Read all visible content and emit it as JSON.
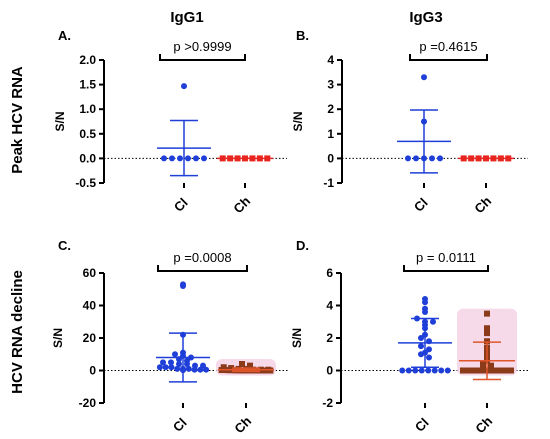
{
  "column_titles": [
    "IgG1",
    "IgG3"
  ],
  "row_titles": [
    "Peak HCV RNA",
    "HCV RNA decline"
  ],
  "colors": {
    "cl": "#1f3fd8",
    "ch_top": "#e8251f",
    "ch_bottom": "#8b3a1a",
    "ch_bottom_bg": "#f5d3e6",
    "axis": "#000000"
  },
  "chart_data": [
    {
      "type": "scatter",
      "panel": "A.",
      "ylabel": "S/N",
      "ylim": [
        -0.5,
        2.0
      ],
      "yticks": [
        -0.5,
        0.0,
        0.5,
        1.0,
        1.5,
        2.0
      ],
      "yticklabels": [
        "-0.5",
        "0.0",
        "0.5",
        "1.0",
        "1.5",
        "2.0"
      ],
      "categories": [
        "Cl",
        "Ch"
      ],
      "p_text": "p  >0.9999",
      "reference_line": 0,
      "series": [
        {
          "category": "Cl",
          "values": [
            1.47,
            0,
            0,
            0,
            0,
            0,
            0
          ],
          "mean": 0.21,
          "sd": 0.56
        },
        {
          "category": "Ch",
          "values": [
            0,
            0,
            0,
            0,
            0,
            0,
            0
          ],
          "mean": 0,
          "sd": 0
        }
      ]
    },
    {
      "type": "scatter",
      "panel": "B.",
      "ylabel": "S/N",
      "ylim": [
        -1,
        4
      ],
      "yticks": [
        -1,
        0,
        1,
        2,
        3,
        4
      ],
      "yticklabels": [
        "-1",
        "0",
        "1",
        "2",
        "3",
        "4"
      ],
      "categories": [
        "Cl",
        "Ch"
      ],
      "p_text": "p =0.4615",
      "reference_line": 0,
      "series": [
        {
          "category": "Cl",
          "values": [
            3.3,
            1.5,
            0,
            0,
            0,
            0,
            0
          ],
          "mean": 0.69,
          "sd": 1.28
        },
        {
          "category": "Ch",
          "values": [
            0,
            0,
            0,
            0,
            0,
            0,
            0
          ],
          "mean": 0,
          "sd": 0
        }
      ]
    },
    {
      "type": "scatter",
      "panel": "C.",
      "ylabel": "S/N",
      "ylim": [
        -20,
        60
      ],
      "yticks": [
        -20,
        0,
        20,
        40,
        60
      ],
      "yticklabels": [
        "-20",
        "0",
        "20",
        "40",
        "60"
      ],
      "categories": [
        "Cl",
        "Ch"
      ],
      "p_text": "p =0.0008",
      "reference_line": 0,
      "series": [
        {
          "category": "Cl",
          "values": [
            53,
            52,
            22,
            11,
            10,
            9,
            8,
            7,
            6,
            5,
            5,
            4,
            4,
            3,
            3,
            2,
            2,
            2,
            1,
            1,
            1,
            0.5,
            0.5,
            0.5,
            0.2
          ],
          "mean": 8,
          "sd": 15
        },
        {
          "category": "Ch",
          "values": [
            4,
            3,
            2,
            1.5,
            1,
            1,
            0.5,
            0.5,
            0.5,
            0.3,
            0.3,
            0.2,
            0.2,
            0.1,
            0.1,
            0,
            0,
            0,
            0,
            0,
            0,
            0,
            0,
            0,
            0
          ],
          "mean": 0.5,
          "sd": 1
        }
      ]
    },
    {
      "type": "scatter",
      "panel": "D.",
      "ylabel": "S/N",
      "ylim": [
        -2,
        6
      ],
      "yticks": [
        -2,
        0,
        2,
        4,
        6
      ],
      "yticklabels": [
        "-2",
        "0",
        "2",
        "4",
        "6"
      ],
      "categories": [
        "Cl",
        "Ch"
      ],
      "p_text": "p = 0.0111",
      "reference_line": 0,
      "series": [
        {
          "category": "Cl",
          "values": [
            4.4,
            4.2,
            3.8,
            3.6,
            3.2,
            3.0,
            3.0,
            2.8,
            2.6,
            2.2,
            2.0,
            1.8,
            1.5,
            1.3,
            1.1,
            1.0,
            0.8,
            0,
            0,
            0,
            0,
            0,
            0,
            0,
            0
          ],
          "mean": 1.7,
          "sd": 1.5
        },
        {
          "category": "Ch",
          "values": [
            3.5,
            2.6,
            2.3,
            1.8,
            1.4,
            1.1,
            0.8,
            0.6,
            0.4,
            0.3,
            0.2,
            0.1,
            0,
            0,
            0,
            0,
            0,
            0,
            0,
            0,
            0,
            0,
            0,
            0,
            0
          ],
          "mean": 0.6,
          "sd": 1.15
        }
      ]
    }
  ]
}
